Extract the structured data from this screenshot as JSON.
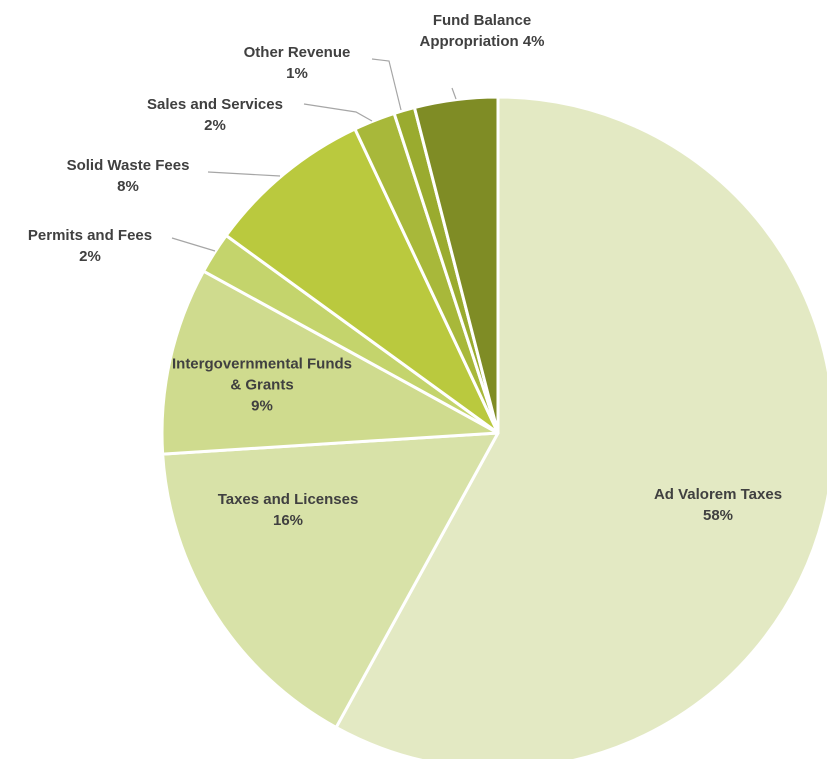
{
  "chart_data": {
    "type": "pie",
    "categories": [
      "Ad Valorem Taxes",
      "Taxes and Licenses",
      "Intergovernmental Funds & Grants",
      "Permits and Fees",
      "Solid Waste Fees",
      "Sales and Services",
      "Other Revenue",
      "Fund Balance Appropriation"
    ],
    "values": [
      58,
      16,
      9,
      2,
      8,
      2,
      1,
      4
    ],
    "value_labels": [
      "58%",
      "16%",
      "9%",
      "2%",
      "8%",
      "2%",
      "1%",
      "4%"
    ],
    "colors": [
      "#e3e9c3",
      "#d8e2a8",
      "#cfdb8e",
      "#c4d46c",
      "#bac93e",
      "#a8b83a",
      "#9aab2f",
      "#7f8c25"
    ]
  }
}
